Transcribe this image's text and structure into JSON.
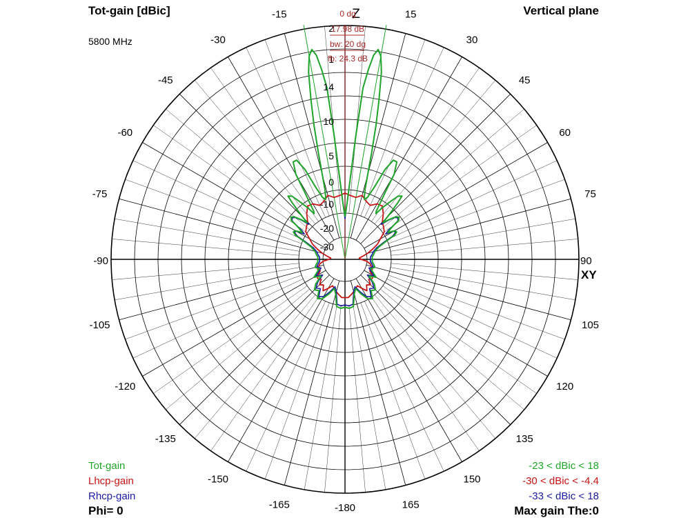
{
  "header": {
    "left_title": "Tot-gain [dBic]",
    "right_title": "Vertical plane",
    "frequency": "5800 MHz"
  },
  "footer": {
    "phi": "Phi= 0",
    "max_gain": "Max gain The:0"
  },
  "legend": [
    {
      "label": "Tot-gain",
      "range": "-23 < dBic < 18",
      "color": "#21a62a"
    },
    {
      "label": "Lhcp-gain",
      "range": "-30 < dBic < -4.4",
      "color": "#c81414"
    },
    {
      "label": "Rhcp-gain",
      "range": "-33 < dBic < 18",
      "color": "#1a1aa6"
    }
  ],
  "beam_info": [
    "0 dg",
    "17.98 dB",
    "bw: 20 dg",
    "fb: 24.3 dB"
  ],
  "colors": {
    "grid": "#000000",
    "tot": "#21a62a",
    "lhcp": "#c81414",
    "rhcp": "#1a1aa6",
    "beam": "#a52a2a"
  },
  "chart_data": {
    "type": "polar",
    "title": "Tot-gain [dBic]",
    "axis_labels": {
      "top": "Z",
      "right": "XY"
    },
    "angle_labels": [
      {
        "deg": -15,
        "text": "-15"
      },
      {
        "deg": 15,
        "text": "15"
      },
      {
        "deg": -30,
        "text": "-30"
      },
      {
        "deg": 30,
        "text": "30"
      },
      {
        "deg": -45,
        "text": "-45"
      },
      {
        "deg": 45,
        "text": "45"
      },
      {
        "deg": -60,
        "text": "-60"
      },
      {
        "deg": 60,
        "text": "60"
      },
      {
        "deg": -75,
        "text": "-75"
      },
      {
        "deg": 75,
        "text": "75"
      },
      {
        "deg": -90,
        "text": "-90"
      },
      {
        "deg": 90,
        "text": "90"
      },
      {
        "deg": -105,
        "text": "-105"
      },
      {
        "deg": 105,
        "text": "105"
      },
      {
        "deg": -120,
        "text": "-120"
      },
      {
        "deg": 120,
        "text": "120"
      },
      {
        "deg": -135,
        "text": "-135"
      },
      {
        "deg": 135,
        "text": "135"
      },
      {
        "deg": -150,
        "text": "-150"
      },
      {
        "deg": 150,
        "text": "150"
      },
      {
        "deg": -165,
        "text": "-165"
      },
      {
        "deg": 165,
        "text": "165"
      },
      {
        "deg": 180,
        "text": "-180"
      }
    ],
    "radial_ticks": [
      {
        "db": -30,
        "text": "-30"
      },
      {
        "db": -20,
        "text": "-20"
      },
      {
        "db": -10,
        "text": "-10"
      },
      {
        "db": 0,
        "text": "0"
      },
      {
        "db": 5,
        "text": "5"
      },
      {
        "db": 10,
        "text": "10"
      },
      {
        "db": 14,
        "text": "14"
      },
      {
        "db": 17,
        "text": "1"
      },
      {
        "db": 19.5,
        "text": "2"
      }
    ],
    "db_range": [
      -33,
      20
    ],
    "main_beam_deg": 0,
    "beamwidth_deg": 20,
    "series": [
      {
        "name": "Tot-gain",
        "key": "tot",
        "points": [
          [
            0,
            -15
          ],
          [
            2,
            -10
          ],
          [
            4,
            2
          ],
          [
            5,
            8
          ],
          [
            6,
            14
          ],
          [
            7,
            16
          ],
          [
            8,
            17.5
          ],
          [
            9,
            18
          ],
          [
            10,
            17.5
          ],
          [
            11,
            16
          ],
          [
            12,
            13
          ],
          [
            13,
            10
          ],
          [
            14,
            6
          ],
          [
            15,
            2
          ],
          [
            16,
            -2
          ],
          [
            17,
            -5
          ],
          [
            18,
            -6.5
          ],
          [
            20,
            -5
          ],
          [
            22,
            0
          ],
          [
            24,
            4
          ],
          [
            26,
            6
          ],
          [
            28,
            6
          ],
          [
            30,
            4
          ],
          [
            31,
            0
          ],
          [
            32,
            -5
          ],
          [
            33,
            -9
          ],
          [
            34,
            -10
          ],
          [
            36,
            -6
          ],
          [
            38,
            -2
          ],
          [
            40,
            1
          ],
          [
            42,
            1.5
          ],
          [
            43,
            0
          ],
          [
            44,
            -4
          ],
          [
            45,
            -8
          ],
          [
            46,
            -11
          ],
          [
            48,
            -8
          ],
          [
            50,
            -5
          ],
          [
            52,
            -4
          ],
          [
            54,
            -5
          ],
          [
            55,
            -8
          ],
          [
            56,
            -10
          ],
          [
            58,
            -12
          ],
          [
            60,
            -9
          ],
          [
            62,
            -8.5
          ],
          [
            64,
            -10
          ],
          [
            66,
            -14
          ],
          [
            70,
            -18
          ],
          [
            75,
            -20
          ],
          [
            80,
            -21
          ],
          [
            85,
            -22
          ],
          [
            90,
            -22
          ],
          [
            95,
            -22
          ],
          [
            100,
            -21
          ],
          [
            105,
            -20
          ],
          [
            110,
            -22
          ],
          [
            115,
            -20
          ],
          [
            120,
            -18
          ],
          [
            125,
            -21
          ],
          [
            130,
            -17
          ],
          [
            135,
            -15
          ],
          [
            140,
            -16
          ],
          [
            145,
            -13
          ],
          [
            150,
            -14
          ],
          [
            155,
            -17
          ],
          [
            160,
            -20
          ],
          [
            165,
            -18
          ],
          [
            170,
            -13
          ],
          [
            175,
            -12.5
          ],
          [
            180,
            -13
          ]
        ]
      },
      {
        "name": "Lhcp-gain",
        "key": "lhcp",
        "points": [
          [
            0,
            -5
          ],
          [
            5,
            -6
          ],
          [
            10,
            -6.5
          ],
          [
            15,
            -5
          ],
          [
            20,
            -7
          ],
          [
            25,
            -8
          ],
          [
            30,
            -6
          ],
          [
            35,
            -5.5
          ],
          [
            40,
            -8
          ],
          [
            45,
            -11
          ],
          [
            50,
            -12
          ],
          [
            55,
            -13
          ],
          [
            60,
            -16
          ],
          [
            65,
            -18
          ],
          [
            70,
            -21
          ],
          [
            75,
            -24
          ],
          [
            80,
            -27
          ],
          [
            85,
            -29
          ],
          [
            90,
            -28
          ],
          [
            95,
            -25
          ],
          [
            100,
            -23
          ],
          [
            105,
            -22
          ],
          [
            110,
            -21
          ],
          [
            115,
            -22
          ],
          [
            120,
            -20
          ],
          [
            125,
            -19
          ],
          [
            130,
            -20
          ],
          [
            135,
            -18
          ],
          [
            140,
            -19
          ],
          [
            145,
            -17
          ],
          [
            150,
            -19
          ],
          [
            155,
            -21
          ],
          [
            160,
            -20
          ],
          [
            165,
            -19
          ],
          [
            170,
            -18
          ],
          [
            175,
            -17
          ],
          [
            180,
            -17
          ]
        ]
      },
      {
        "name": "Rhcp-gain",
        "key": "rhcp",
        "points": [
          [
            0,
            -16
          ],
          [
            2,
            -10
          ],
          [
            4,
            2
          ],
          [
            5,
            8
          ],
          [
            6,
            14
          ],
          [
            7,
            16
          ],
          [
            8,
            17.5
          ],
          [
            9,
            18
          ],
          [
            10,
            17.5
          ],
          [
            11,
            16
          ],
          [
            12,
            13
          ],
          [
            13,
            10
          ],
          [
            14,
            6
          ],
          [
            15,
            2
          ],
          [
            16,
            -2
          ],
          [
            17,
            -5
          ],
          [
            18,
            -6.5
          ],
          [
            20,
            -5
          ],
          [
            22,
            0
          ],
          [
            24,
            4
          ],
          [
            26,
            6
          ],
          [
            28,
            6
          ],
          [
            30,
            4
          ],
          [
            31,
            0
          ],
          [
            32,
            -5
          ],
          [
            33,
            -9
          ],
          [
            34,
            -10
          ],
          [
            36,
            -6
          ],
          [
            38,
            -2
          ],
          [
            40,
            1
          ],
          [
            42,
            1.5
          ],
          [
            43,
            0
          ],
          [
            44,
            -4
          ],
          [
            45,
            -8
          ],
          [
            46,
            -12
          ],
          [
            48,
            -8.5
          ],
          [
            50,
            -5.5
          ],
          [
            52,
            -4.5
          ],
          [
            54,
            -5.5
          ],
          [
            55,
            -8.5
          ],
          [
            56,
            -11
          ],
          [
            58,
            -13
          ],
          [
            60,
            -9.5
          ],
          [
            62,
            -9
          ],
          [
            64,
            -11
          ],
          [
            66,
            -15
          ],
          [
            70,
            -19
          ],
          [
            75,
            -21
          ],
          [
            80,
            -22
          ],
          [
            85,
            -23
          ],
          [
            90,
            -23
          ],
          [
            95,
            -23
          ],
          [
            100,
            -22
          ],
          [
            105,
            -21
          ],
          [
            110,
            -23
          ],
          [
            115,
            -21
          ],
          [
            120,
            -19
          ],
          [
            125,
            -22
          ],
          [
            130,
            -18
          ],
          [
            135,
            -16
          ],
          [
            140,
            -17
          ],
          [
            145,
            -14
          ],
          [
            150,
            -15
          ],
          [
            155,
            -18
          ],
          [
            160,
            -21
          ],
          [
            165,
            -19
          ],
          [
            170,
            -14
          ],
          [
            175,
            -13.5
          ],
          [
            180,
            -14
          ]
        ]
      }
    ]
  }
}
